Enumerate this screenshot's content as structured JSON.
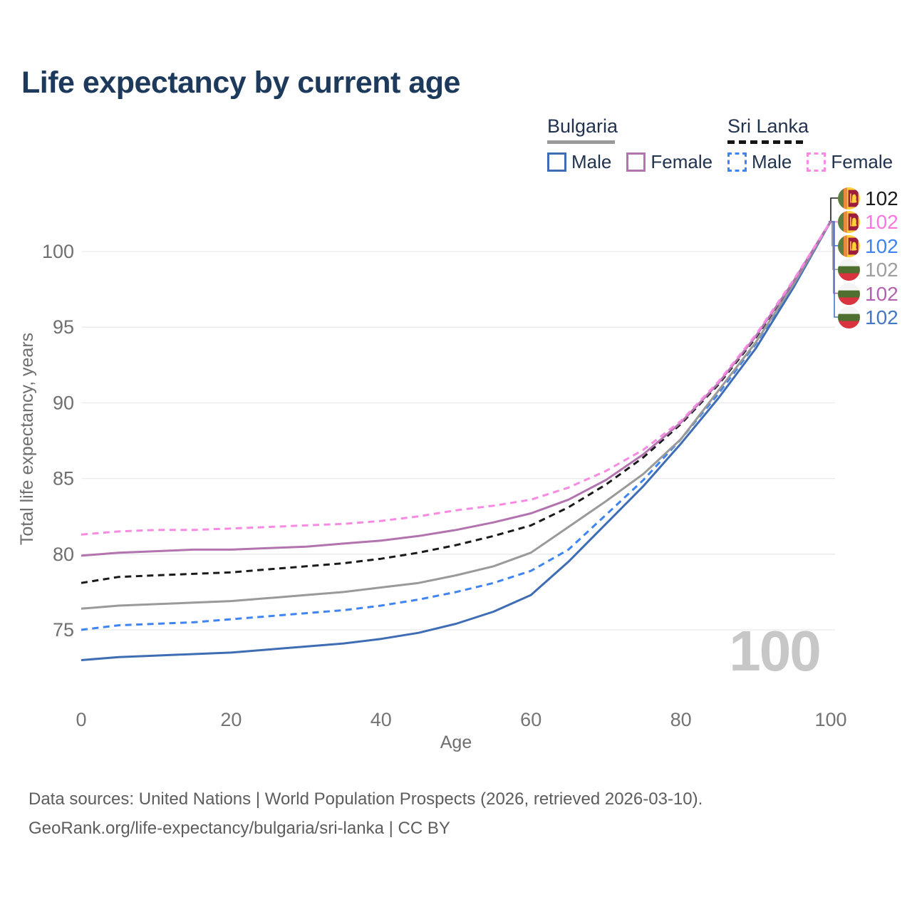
{
  "title": "Life expectancy by current age",
  "legend": {
    "groups": [
      {
        "label": "Bulgaria",
        "line_style": "solid",
        "color": "#9a9a9a",
        "items": [
          {
            "label": "Male",
            "color": "#3e6db4",
            "style": "solid"
          },
          {
            "label": "Female",
            "color": "#b274ae",
            "style": "solid"
          }
        ]
      },
      {
        "label": "Sri Lanka",
        "line_style": "dashed",
        "color": "#141414",
        "items": [
          {
            "label": "Male",
            "color": "#3f84f2",
            "style": "dashed"
          },
          {
            "label": "Female",
            "color": "#f98ae3",
            "style": "dashed"
          }
        ]
      }
    ]
  },
  "chart_data": {
    "type": "line",
    "title": "Life expectancy by current age",
    "xlabel": "Age",
    "ylabel": "Total life expectancy, years",
    "xlim": [
      0,
      100
    ],
    "ylim": [
      72.5,
      103
    ],
    "xticks": [
      0,
      20,
      40,
      60,
      80,
      100
    ],
    "yticks": [
      75,
      80,
      85,
      90,
      95,
      100
    ],
    "grid": "horizontal",
    "legend_position": "top-right",
    "x": [
      0,
      5,
      10,
      15,
      20,
      25,
      30,
      35,
      40,
      45,
      50,
      55,
      60,
      65,
      70,
      75,
      80,
      85,
      90,
      95,
      100
    ],
    "series": [
      {
        "id": "bulgaria-male",
        "name": "Bulgaria Male",
        "country": "Bulgaria",
        "color": "#3e6db4",
        "dash": false,
        "values": [
          73.0,
          73.2,
          73.3,
          73.4,
          73.5,
          73.7,
          73.9,
          74.1,
          74.4,
          74.8,
          75.4,
          76.2,
          77.3,
          79.5,
          82.0,
          84.5,
          87.3,
          90.3,
          93.6,
          97.6,
          102
        ]
      },
      {
        "id": "sri-lanka-male",
        "name": "Sri Lanka Male",
        "country": "Sri Lanka",
        "color": "#3f84f2",
        "dash": true,
        "values": [
          75.0,
          75.3,
          75.4,
          75.5,
          75.7,
          75.9,
          76.1,
          76.3,
          76.6,
          77.0,
          77.5,
          78.1,
          78.9,
          80.3,
          82.6,
          84.9,
          87.6,
          90.6,
          93.9,
          97.8,
          102
        ]
      },
      {
        "id": "bulgaria-total",
        "name": "Bulgaria",
        "country": "Bulgaria",
        "color": "#9a9a9a",
        "dash": false,
        "values": [
          76.4,
          76.6,
          76.7,
          76.8,
          76.9,
          77.1,
          77.3,
          77.5,
          77.8,
          78.1,
          78.6,
          79.2,
          80.1,
          81.8,
          83.5,
          85.3,
          87.6,
          90.8,
          94.0,
          97.8,
          102
        ]
      },
      {
        "id": "sri-lanka-total",
        "name": "Sri Lanka",
        "country": "Sri Lanka",
        "color": "#1a1a1a",
        "dash": true,
        "values": [
          78.1,
          78.5,
          78.6,
          78.7,
          78.8,
          79.0,
          79.2,
          79.4,
          79.7,
          80.1,
          80.6,
          81.2,
          81.9,
          83.1,
          84.6,
          86.4,
          88.6,
          91.2,
          94.3,
          98.0,
          102
        ]
      },
      {
        "id": "bulgaria-female",
        "name": "Bulgaria Female",
        "country": "Bulgaria",
        "color": "#b274ae",
        "dash": false,
        "values": [
          79.9,
          80.1,
          80.2,
          80.3,
          80.3,
          80.4,
          80.5,
          80.7,
          80.9,
          81.2,
          81.6,
          82.1,
          82.7,
          83.6,
          84.9,
          86.6,
          88.7,
          91.3,
          94.4,
          98.0,
          102
        ]
      },
      {
        "id": "sri-lanka-female",
        "name": "Sri Lanka Female",
        "country": "Sri Lanka",
        "color": "#f98ae3",
        "dash": true,
        "values": [
          81.3,
          81.5,
          81.6,
          81.6,
          81.7,
          81.8,
          81.9,
          82.0,
          82.2,
          82.5,
          82.9,
          83.2,
          83.6,
          84.4,
          85.5,
          86.9,
          88.8,
          91.4,
          94.5,
          98.1,
          102
        ]
      }
    ],
    "end_value": 102,
    "age_watermark": "100"
  },
  "end_labels": [
    {
      "country": "Sri Lanka",
      "series": "sri-lanka-total",
      "value": "102",
      "color": "#1a1a1a"
    },
    {
      "country": "Sri Lanka",
      "series": "sri-lanka-female",
      "value": "102",
      "color": "#fb77df"
    },
    {
      "country": "Sri Lanka",
      "series": "sri-lanka-male",
      "value": "102",
      "color": "#3f84f2"
    },
    {
      "country": "Bulgaria",
      "series": "bulgaria-total",
      "value": "102",
      "color": "#9e9e9e"
    },
    {
      "country": "Bulgaria",
      "series": "bulgaria-female",
      "value": "102",
      "color": "#b263af"
    },
    {
      "country": "Bulgaria",
      "series": "bulgaria-male",
      "value": "102",
      "color": "#4577c2"
    }
  ],
  "footer": {
    "line1": "Data sources: United Nations | World Population Prospects (2026, retrieved 2026-03-10).",
    "line2": "GeoRank.org/life-expectancy/bulgaria/sri-lanka | CC BY"
  }
}
